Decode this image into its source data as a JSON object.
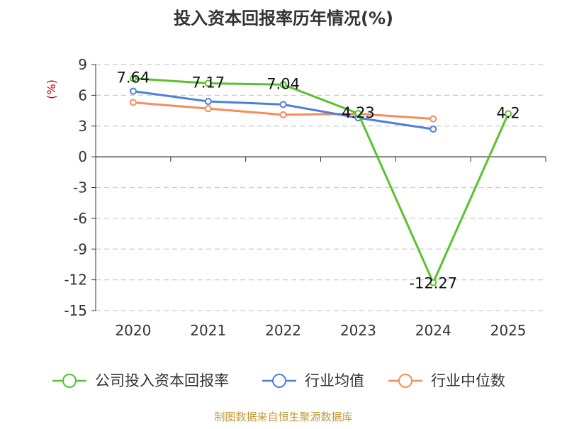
{
  "chart_data": {
    "type": "line",
    "title": "投入资本回报率历年情况(%)",
    "ylabel": "(%)",
    "xlabel": "",
    "categories": [
      "2020",
      "2021",
      "2022",
      "2023",
      "2024",
      "2025"
    ],
    "yticks": [
      "9",
      "6",
      "3",
      "0",
      "-3",
      "-6",
      "-9",
      "-12",
      "-15"
    ],
    "ylim": [
      -15,
      9
    ],
    "grid": "horizontal dashed",
    "legend_position": "bottom",
    "series": [
      {
        "name": "公司投入资本回报率",
        "color": "#5ac12f",
        "values": [
          7.64,
          7.17,
          7.04,
          4.23,
          -12.27,
          4.2
        ],
        "labels": [
          "7.64",
          "7.17",
          "7.04",
          "4.23",
          "-12.27",
          "4.2"
        ]
      },
      {
        "name": "行业均值",
        "color": "#4f7fdb",
        "values": [
          6.4,
          5.4,
          5.1,
          3.8,
          2.7,
          null
        ]
      },
      {
        "name": "行业中位数",
        "color": "#f58d5a",
        "values": [
          5.3,
          4.7,
          4.1,
          4.2,
          3.7,
          null
        ]
      }
    ]
  },
  "footer": {
    "source": "制图数据来自恒生聚源数据库"
  },
  "colors": {
    "source_text": "#c19a3a",
    "ylabel_text": "#cc0000",
    "axis": "#333333",
    "grid": "#cccccc"
  }
}
